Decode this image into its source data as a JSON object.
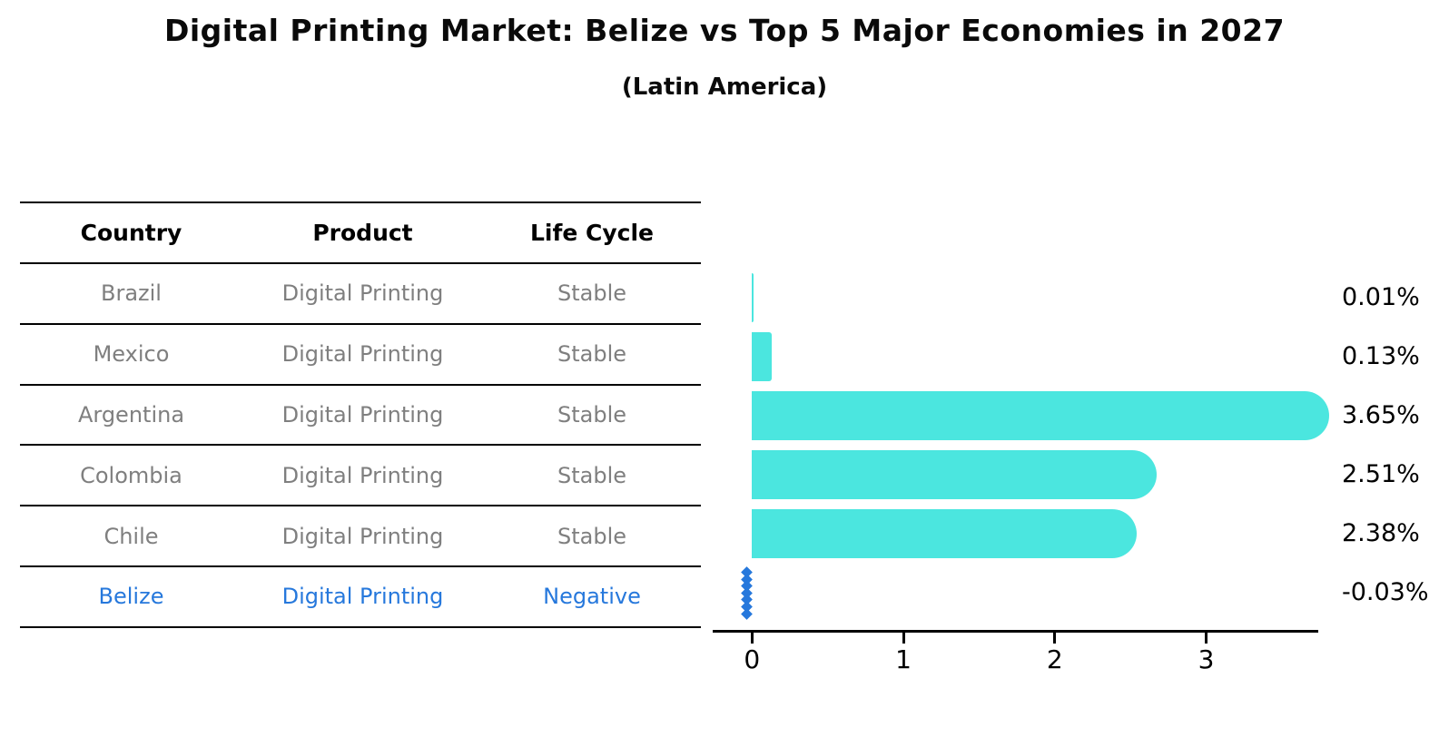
{
  "title": "Digital Printing Market: Belize vs Top 5 Major Economies in 2027",
  "subtitle": "(Latin America)",
  "table": {
    "headers": [
      "Country",
      "Product",
      "Life Cycle"
    ],
    "rows": [
      {
        "country": "Brazil",
        "product": "Digital Printing",
        "life_cycle": "Stable",
        "highlight": false
      },
      {
        "country": "Mexico",
        "product": "Digital Printing",
        "life_cycle": "Stable",
        "highlight": false
      },
      {
        "country": "Argentina",
        "product": "Digital Printing",
        "life_cycle": "Stable",
        "highlight": false
      },
      {
        "country": "Colombia",
        "product": "Digital Printing",
        "life_cycle": "Stable",
        "highlight": false
      },
      {
        "country": "Chile",
        "product": "Digital Printing",
        "life_cycle": "Stable",
        "highlight": false
      },
      {
        "country": "Belize",
        "product": "Digital Printing",
        "life_cycle": "Negative",
        "highlight": true
      }
    ]
  },
  "chart_data": {
    "type": "bar",
    "orientation": "horizontal",
    "categories": [
      "Brazil",
      "Mexico",
      "Argentina",
      "Colombia",
      "Chile",
      "Belize"
    ],
    "values": [
      0.01,
      0.13,
      3.65,
      2.51,
      2.38,
      -0.03
    ],
    "value_labels": [
      "0.01%",
      "0.13%",
      "3.65%",
      "2.51%",
      "2.38%",
      "-0.03%"
    ],
    "ylabel": "",
    "xlabel": "",
    "x_ticks": [
      "0",
      "1",
      "2",
      "3"
    ],
    "x_tick_values": [
      0,
      1,
      2,
      3
    ],
    "xlim": [
      -0.26,
      3.74
    ],
    "grid": false,
    "legend": "none",
    "highlight_index": 5,
    "highlight_marker": "vertical dotted diamond line at value"
  },
  "colors": {
    "bar": "#4BE6DF",
    "highlight_blue": "#2678DC",
    "table_text_gray": "#7f7f7f",
    "text_black": "#0a0a0a",
    "background": "#ffffff"
  }
}
